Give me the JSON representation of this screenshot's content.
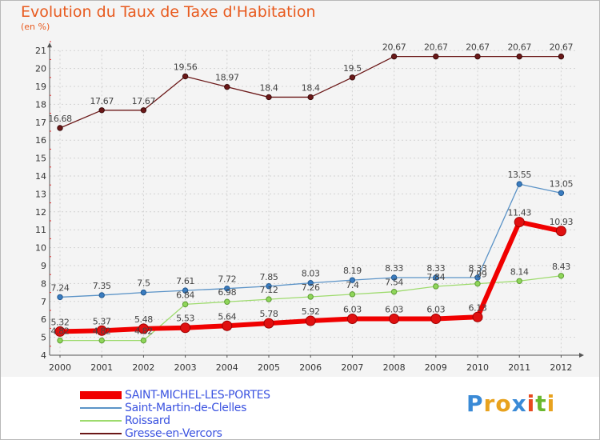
{
  "chart_data": {
    "type": "line",
    "title": "Evolution du Taux de Taxe d'Habitation",
    "ylabel": "(en %)",
    "xlabel": "",
    "ylim": [
      4,
      21
    ],
    "yticks": [
      "4",
      "5",
      "6",
      "7",
      "8",
      "9",
      "10",
      "11",
      "12",
      "13",
      "14",
      "15",
      "16",
      "17",
      "18",
      "19",
      "20",
      "21"
    ],
    "categories": [
      "2000",
      "2001",
      "2002",
      "2003",
      "2004",
      "2005",
      "2006",
      "2007",
      "2008",
      "2009",
      "2010",
      "2011",
      "2012"
    ],
    "series": [
      {
        "name": "Gresse-en-Vercors",
        "color": "#6b1818",
        "values": [
          16.68,
          17.67,
          17.67,
          19.56,
          18.97,
          18.4,
          18.4,
          19.5,
          20.67,
          20.67,
          20.67,
          20.67,
          20.67
        ],
        "labels": [
          "16.68",
          "17.67",
          "17.67",
          "19.56",
          "18.97",
          "18.4",
          "18.4",
          "19.5",
          "20.67",
          "20.67",
          "20.67",
          "20.67",
          "20.67"
        ]
      },
      {
        "name": "Saint-Martin-de-Clelles",
        "color": "#5b93c7",
        "values": [
          7.24,
          7.35,
          7.5,
          7.61,
          7.72,
          7.85,
          8.03,
          8.19,
          8.33,
          8.33,
          8.33,
          13.55,
          13.05
        ],
        "labels": [
          "7.24",
          "7.35",
          "7.5",
          "7.61",
          "7.72",
          "7.85",
          "8.03",
          "8.19",
          "8.33",
          "8.33",
          "8.33",
          "13.55",
          "13.05"
        ]
      },
      {
        "name": "Roissard",
        "color": "#9edb6e",
        "values": [
          4.82,
          4.82,
          4.82,
          6.84,
          6.98,
          7.12,
          7.26,
          7.4,
          7.54,
          7.84,
          7.99,
          8.14,
          8.43
        ],
        "labels": [
          "4.82",
          "4.82",
          "4.82",
          "6.84",
          "6.98",
          "7.12",
          "7.26",
          "7.4",
          "7.54",
          "7.84",
          "7.99",
          "8.14",
          "8.43"
        ]
      },
      {
        "name": "SAINT-MICHEL-LES-PORTES",
        "color": "#f00000",
        "values": [
          5.32,
          5.37,
          5.48,
          5.53,
          5.64,
          5.78,
          5.92,
          6.03,
          6.03,
          6.03,
          6.13,
          11.43,
          10.93
        ],
        "labels": [
          "5.32",
          "5.37",
          "5.48",
          "5.53",
          "5.64",
          "5.78",
          "5.92",
          "6.03",
          "6.03",
          "6.03",
          "6.13",
          "11.43",
          "10.93"
        ]
      }
    ],
    "legend": [
      {
        "name": "SAINT-MICHEL-LES-PORTES",
        "color": "#f00000",
        "text_color": "#3a52e0"
      },
      {
        "name": "Saint-Martin-de-Clelles",
        "color": "#5b93c7",
        "text_color": "#3a52e0"
      },
      {
        "name": "Roissard",
        "color": "#9edb6e",
        "text_color": "#3a52e0"
      },
      {
        "name": "Gresse-en-Vercors",
        "color": "#6b1818",
        "text_color": "#3a52e0"
      }
    ]
  },
  "logo": {
    "letters": [
      "P",
      "r",
      "o",
      "x",
      "i",
      "t",
      "i"
    ],
    "colors": [
      "#3a8ad6",
      "#e8a21e",
      "#e8a21e",
      "#3a8ad6",
      "#e84a1e",
      "#6ab82e",
      "#e8a21e"
    ]
  }
}
